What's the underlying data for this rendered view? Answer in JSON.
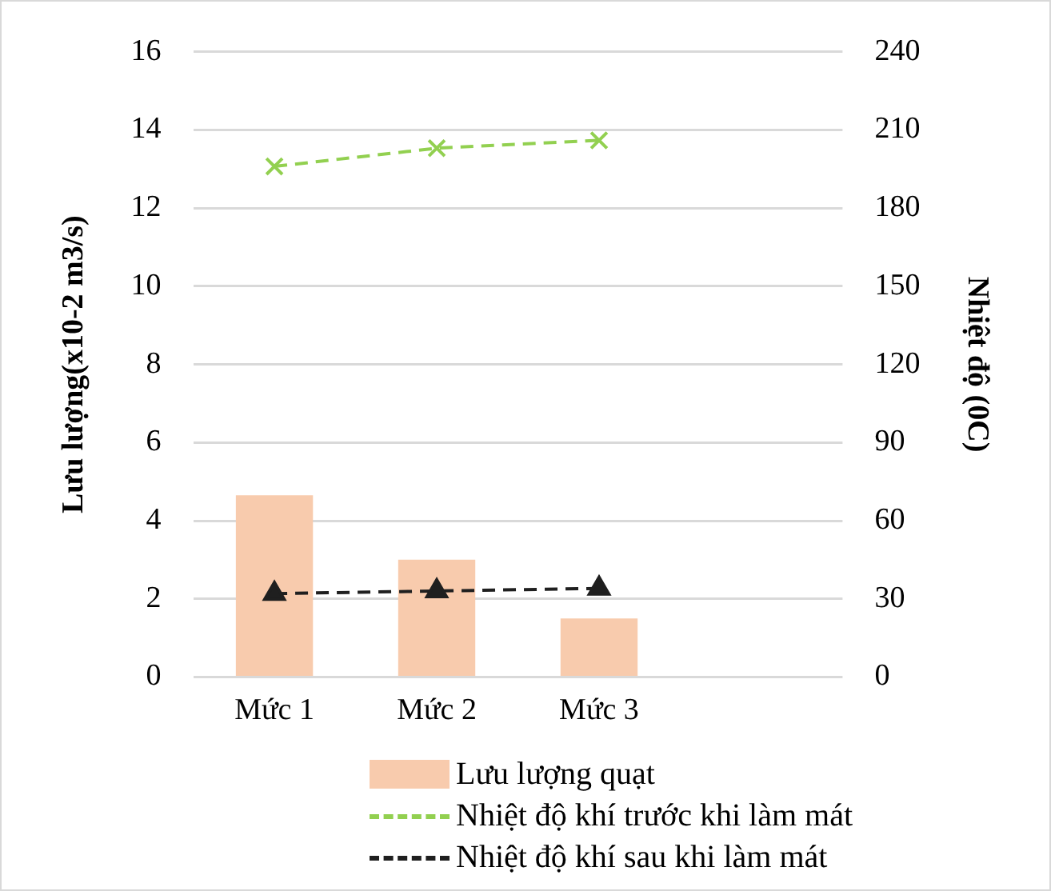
{
  "chart_data": {
    "type": "bar",
    "categories": [
      "Mức 1",
      "Mức 2",
      "Mức 3",
      null
    ],
    "ylabel": "Lưu lượng(x10-2 m3/s)",
    "y2label": "Nhiệt độ (0C)",
    "ylim": [
      0,
      16
    ],
    "yticks": [
      0,
      2,
      4,
      6,
      8,
      10,
      12,
      14,
      16
    ],
    "y2lim": [
      0,
      240
    ],
    "y2ticks": [
      0,
      30,
      60,
      90,
      120,
      150,
      180,
      210,
      240
    ],
    "grid": "y",
    "legend": "bottom",
    "series": [
      {
        "name": "Lưu lượng quạt",
        "color": "#f8cbad",
        "values": [
          4.65,
          3.0,
          1.5,
          null
        ]
      },
      {
        "name": "Nhiệt độ khí trước khi làm mát",
        "type": "line",
        "axis": "y2",
        "color": "#92d050",
        "marker": "cross",
        "line_style": "dashed",
        "values": [
          196,
          203,
          206,
          null
        ]
      },
      {
        "name": "Nhiệt độ khí sau khi làm mát",
        "type": "line",
        "axis": "y2",
        "color": "#1f1f1f",
        "marker": "triangle",
        "line_style": "dashed",
        "values": [
          32,
          33,
          34,
          null
        ]
      }
    ]
  }
}
